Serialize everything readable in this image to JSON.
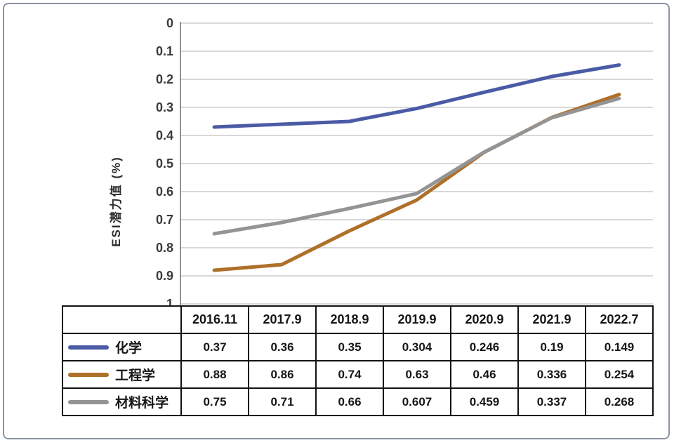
{
  "chart_data": {
    "type": "line",
    "title": "",
    "ylabel": "ESI潜力值 (%)",
    "xlabel": "",
    "categories": [
      "2016.11",
      "2017.9",
      "2018.9",
      "2019.9",
      "2020.9",
      "2021.9",
      "2022.7"
    ],
    "series": [
      {
        "name": "化学",
        "color": "#4a5ba6",
        "values": [
          0.37,
          0.36,
          0.35,
          0.304,
          0.246,
          0.19,
          0.149
        ]
      },
      {
        "name": "工程学",
        "color": "#ae7029",
        "values": [
          0.88,
          0.86,
          0.74,
          0.63,
          0.46,
          0.336,
          0.254
        ]
      },
      {
        "name": "材料科学",
        "color": "#949494",
        "values": [
          0.75,
          0.71,
          0.66,
          0.607,
          0.459,
          0.337,
          0.268
        ]
      }
    ],
    "y_axis": {
      "min": 0,
      "max": 1,
      "step": 0.1,
      "inverted": true,
      "ticks": [
        "0",
        "0.1",
        "0.2",
        "0.3",
        "0.4",
        "0.5",
        "0.6",
        "0.7",
        "0.8",
        "0.9",
        "1"
      ]
    },
    "grid": true,
    "legend_position": "data-table-left"
  },
  "styles": {
    "grid_color": "#cbcbcb",
    "axis_color": "#787878",
    "tick_text_color": "#3a3a3a",
    "table_border_color": "#121212",
    "table_text_color": "#161616",
    "frame_border_color": "#8b94a2"
  }
}
